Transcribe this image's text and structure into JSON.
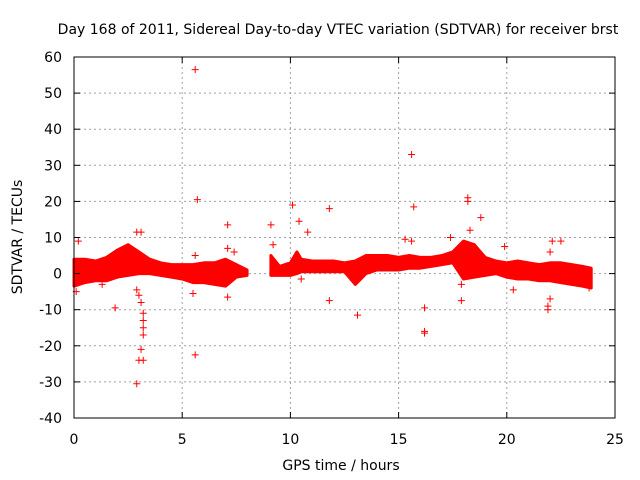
{
  "chart_data": {
    "type": "scatter",
    "title": "Day 168 of 2011, Sidereal Day-to-day VTEC variation (SDTVAR) for receiver brst",
    "xlabel": "GPS time / hours",
    "ylabel": "SDTVAR / TECUs",
    "xlim": [
      0,
      25
    ],
    "ylim": [
      -40,
      60
    ],
    "xticks": [
      0,
      5,
      10,
      15,
      20,
      25
    ],
    "xtick_labels": [
      "0",
      "5",
      "10",
      "15",
      "20",
      "25"
    ],
    "yticks": [
      -40,
      -30,
      -20,
      -10,
      0,
      10,
      20,
      30,
      40,
      50,
      60
    ],
    "ytick_labels": [
      "-40",
      "-30",
      "-20",
      "-10",
      "0",
      "10",
      "20",
      "30",
      "40",
      "50",
      "60"
    ],
    "grid": true,
    "marker": "+",
    "marker_color": "#ff0000",
    "dense_bands": [
      {
        "name": "band-0",
        "x": [
          0.0,
          0.5,
          1.0,
          1.5,
          2.0,
          2.5,
          3.0,
          3.5,
          4.0,
          4.5,
          5.0,
          5.5,
          6.0,
          6.5,
          7.0,
          7.5,
          8.0
        ],
        "lower": [
          -3.5,
          -2.5,
          -2.0,
          -2.0,
          -1.0,
          -0.5,
          0.0,
          0.0,
          -0.5,
          -1.0,
          -1.5,
          -2.5,
          -2.5,
          -3.0,
          -3.5,
          -1.0,
          -0.5
        ],
        "upper": [
          4.0,
          4.0,
          3.5,
          4.5,
          6.5,
          8.0,
          6.0,
          4.0,
          3.0,
          2.5,
          2.5,
          2.5,
          3.0,
          3.0,
          4.0,
          2.5,
          1.0
        ]
      },
      {
        "name": "band-1",
        "x": [
          9.1,
          9.5,
          10.0,
          10.3,
          10.5,
          11.0,
          11.5,
          12.0,
          12.5,
          13.0,
          13.5,
          14.0,
          14.5,
          15.0,
          15.5,
          16.0,
          16.5,
          17.0,
          17.5,
          18.0,
          18.5,
          19.0,
          19.5,
          20.0,
          20.5,
          21.0,
          21.5,
          22.0,
          22.5,
          23.0,
          23.5,
          23.9
        ],
        "lower": [
          -0.5,
          -0.5,
          -0.5,
          0.0,
          0.5,
          0.5,
          0.5,
          0.5,
          0.5,
          -3.0,
          0.0,
          1.0,
          1.0,
          1.0,
          1.5,
          1.5,
          2.0,
          2.5,
          3.0,
          -1.5,
          -1.0,
          -0.5,
          0.0,
          -1.0,
          -1.5,
          -1.5,
          -2.0,
          -2.0,
          -2.5,
          -3.0,
          -3.5,
          -4.0
        ],
        "upper": [
          5.0,
          2.0,
          3.0,
          6.0,
          4.0,
          3.5,
          3.5,
          3.5,
          3.0,
          3.5,
          5.0,
          5.0,
          5.0,
          4.5,
          5.0,
          4.5,
          4.5,
          5.0,
          6.0,
          9.0,
          8.0,
          4.5,
          3.5,
          3.0,
          3.5,
          3.0,
          2.5,
          3.0,
          3.0,
          2.5,
          2.0,
          1.5
        ]
      }
    ],
    "scattered_points": [
      {
        "x": 0.2,
        "y": 9
      },
      {
        "x": 0.1,
        "y": -5
      },
      {
        "x": 0.5,
        "y": 1
      },
      {
        "x": 1.3,
        "y": -3
      },
      {
        "x": 1.9,
        "y": -9.5
      },
      {
        "x": 2.9,
        "y": 11.5
      },
      {
        "x": 3.1,
        "y": 11.5
      },
      {
        "x": 2.9,
        "y": -4.5
      },
      {
        "x": 3.0,
        "y": -6
      },
      {
        "x": 3.1,
        "y": -8
      },
      {
        "x": 3.2,
        "y": -11
      },
      {
        "x": 3.2,
        "y": -13
      },
      {
        "x": 3.2,
        "y": -15
      },
      {
        "x": 3.2,
        "y": -17
      },
      {
        "x": 3.1,
        "y": -21
      },
      {
        "x": 3.0,
        "y": -24
      },
      {
        "x": 3.2,
        "y": -24
      },
      {
        "x": 2.9,
        "y": -30.5
      },
      {
        "x": 5.6,
        "y": 56.5
      },
      {
        "x": 5.7,
        "y": 20.5
      },
      {
        "x": 5.6,
        "y": -22.5
      },
      {
        "x": 5.5,
        "y": -5.5
      },
      {
        "x": 5.6,
        "y": 5
      },
      {
        "x": 7.1,
        "y": 13.5
      },
      {
        "x": 7.1,
        "y": 7
      },
      {
        "x": 7.1,
        "y": -6.5
      },
      {
        "x": 7.4,
        "y": 6
      },
      {
        "x": 9.1,
        "y": 13.5
      },
      {
        "x": 9.2,
        "y": 8
      },
      {
        "x": 10.1,
        "y": 19
      },
      {
        "x": 10.4,
        "y": 14.5
      },
      {
        "x": 10.8,
        "y": 11.5
      },
      {
        "x": 10.5,
        "y": -1.5
      },
      {
        "x": 11.8,
        "y": 18
      },
      {
        "x": 11.8,
        "y": -7.5
      },
      {
        "x": 13.1,
        "y": -11.5
      },
      {
        "x": 15.3,
        "y": 9.5
      },
      {
        "x": 15.6,
        "y": 33
      },
      {
        "x": 15.7,
        "y": 18.5
      },
      {
        "x": 15.6,
        "y": 9
      },
      {
        "x": 16.2,
        "y": -9.5
      },
      {
        "x": 16.2,
        "y": -16
      },
      {
        "x": 16.2,
        "y": -16.5
      },
      {
        "x": 17.4,
        "y": 10
      },
      {
        "x": 17.9,
        "y": -3
      },
      {
        "x": 17.9,
        "y": -7.5
      },
      {
        "x": 18.2,
        "y": 21
      },
      {
        "x": 18.2,
        "y": 20
      },
      {
        "x": 18.3,
        "y": 12
      },
      {
        "x": 18.8,
        "y": 15.5
      },
      {
        "x": 19.9,
        "y": 7.5
      },
      {
        "x": 20.3,
        "y": -4.5
      },
      {
        "x": 21.9,
        "y": -9
      },
      {
        "x": 21.9,
        "y": -10
      },
      {
        "x": 22.0,
        "y": -7
      },
      {
        "x": 22.1,
        "y": 9
      },
      {
        "x": 22.5,
        "y": 9
      },
      {
        "x": 22.0,
        "y": 6
      },
      {
        "x": 23.8,
        "y": -4
      }
    ]
  }
}
